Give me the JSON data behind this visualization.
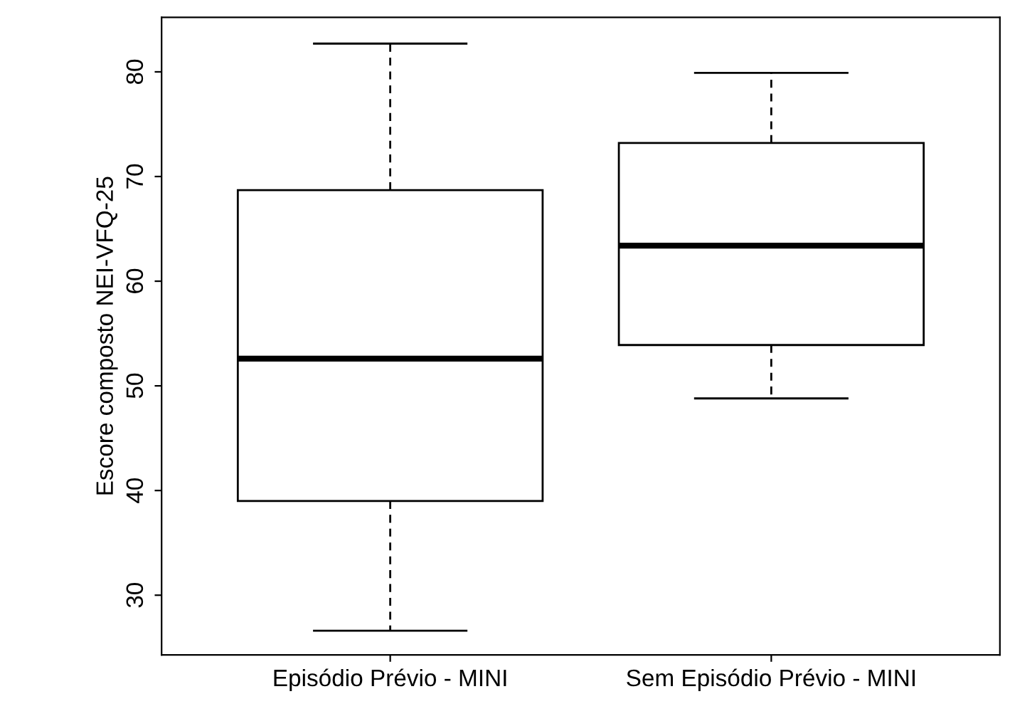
{
  "chart_data": {
    "type": "box",
    "ylabel": "Escore composto NEI-VFQ-25",
    "categories": [
      "Episódio Prévio - MINI",
      "Sem Episódio Prévio - MINI"
    ],
    "boxes": [
      {
        "low": 26.6,
        "q1": 39.0,
        "median": 52.6,
        "q3": 68.7,
        "high": 82.7
      },
      {
        "low": 48.8,
        "q1": 53.9,
        "median": 63.4,
        "q3": 73.2,
        "high": 79.9
      }
    ],
    "ylim": [
      24.3,
      85.2
    ],
    "yticks": [
      30,
      40,
      50,
      60,
      70,
      80
    ],
    "grid": false
  }
}
